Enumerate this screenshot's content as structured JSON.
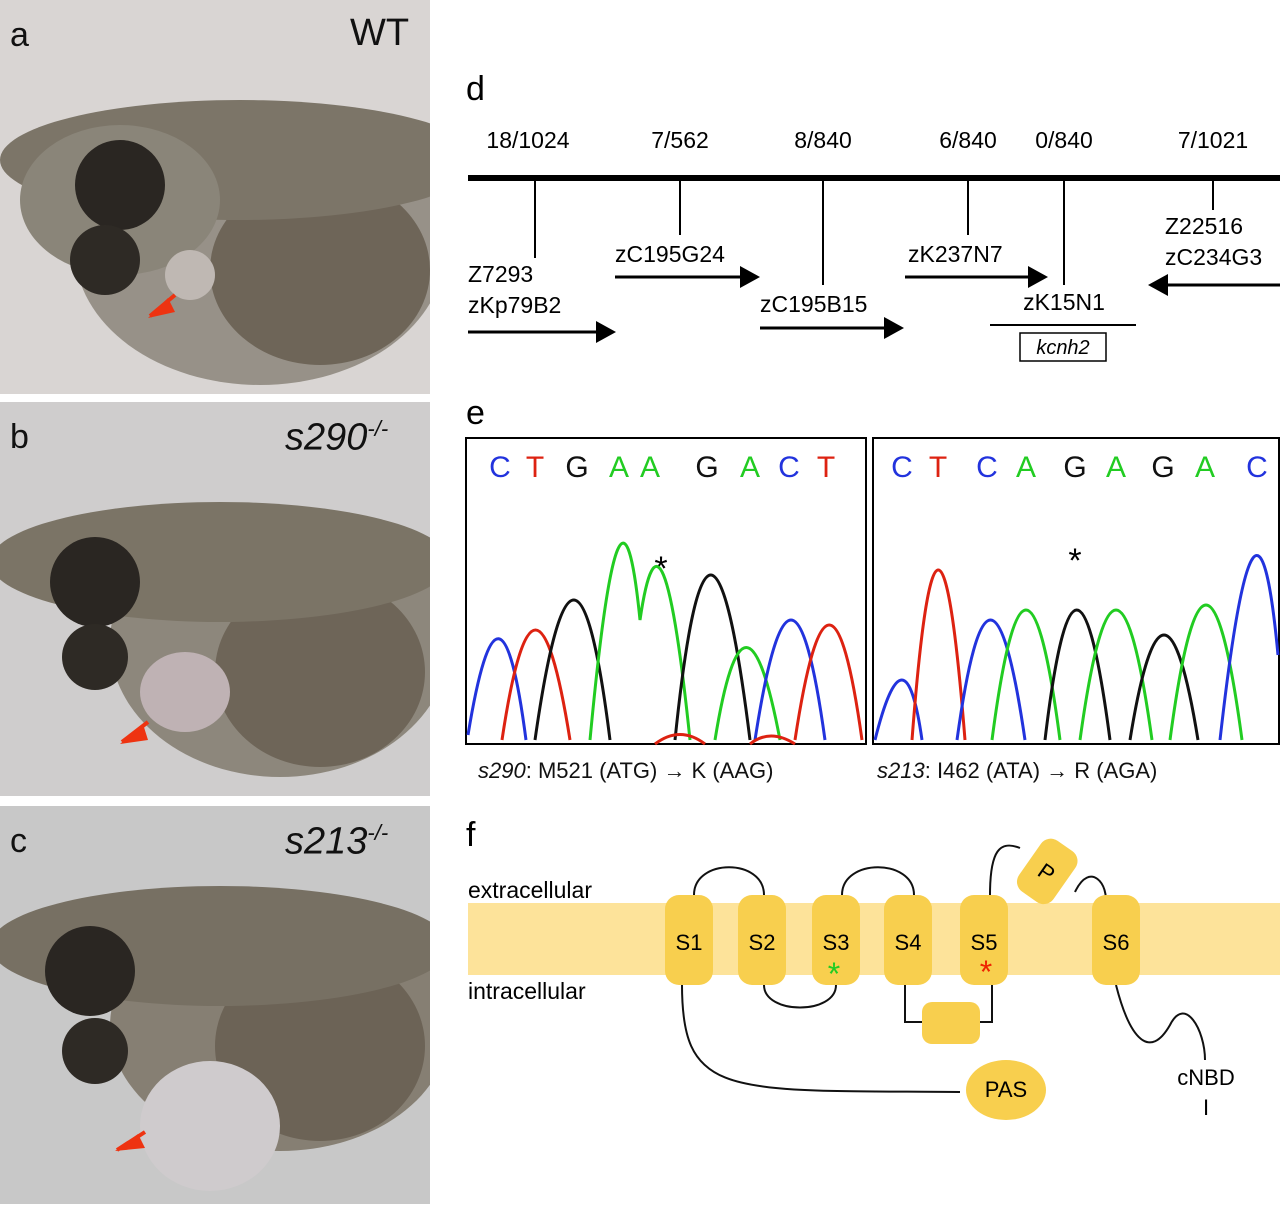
{
  "panels": {
    "a": {
      "label": "a",
      "genotype": "WT"
    },
    "b": {
      "label": "b",
      "genotype": "s290",
      "genotype_sup": "-/-"
    },
    "c": {
      "label": "c",
      "genotype": "s213",
      "genotype_sup": "-/-"
    }
  },
  "panel_d": {
    "label": "d",
    "markers": [
      {
        "ratio": "18/1024",
        "clones": [
          "Z7293",
          "zKp79B2"
        ]
      },
      {
        "ratio": "7/562",
        "clones": [
          "zC195G24"
        ]
      },
      {
        "ratio": "8/840",
        "clones": [
          "zC195B15"
        ]
      },
      {
        "ratio": "6/840",
        "clones": [
          "zK237N7"
        ]
      },
      {
        "ratio": "0/840",
        "clones": [
          "zK15N1"
        ]
      },
      {
        "ratio": "7/1021",
        "clones": [
          "Z22516",
          "zC234G3"
        ]
      }
    ],
    "gene": "kcnh2"
  },
  "panel_e": {
    "label": "e",
    "left": {
      "bases": [
        "C",
        "T",
        "G",
        "A",
        "A",
        "G",
        "A",
        "C",
        "T"
      ],
      "asterisk": "*",
      "caption_allele": "s290",
      "caption_rest": ": M521 (ATG) → K (AAG)"
    },
    "right": {
      "bases": [
        "C",
        "T",
        "C",
        "A",
        "G",
        "A",
        "G",
        "A",
        "C"
      ],
      "asterisk": "*",
      "caption_allele": "s213",
      "caption_rest": ": I462 (ATA) → R (AGA)"
    },
    "base_colors": {
      "A": "#22cc22",
      "C": "#2233dd",
      "G": "#111111",
      "T": "#dd2211"
    }
  },
  "panel_f": {
    "label": "f",
    "extracellular": "extracellular",
    "intracellular": "intracellular",
    "segments": [
      "S1",
      "S2",
      "S3",
      "S4",
      "S5",
      "S6"
    ],
    "pore": "P",
    "pas": "PAS",
    "cnbd": "cNBD",
    "cnbd_tail": "I",
    "asterisk_green": "*",
    "asterisk_red": "*",
    "colors": {
      "membrane": "#fde39a",
      "helix": "#f8cf4e",
      "green_star": "#22cc22",
      "red_star": "#ee2200"
    }
  }
}
